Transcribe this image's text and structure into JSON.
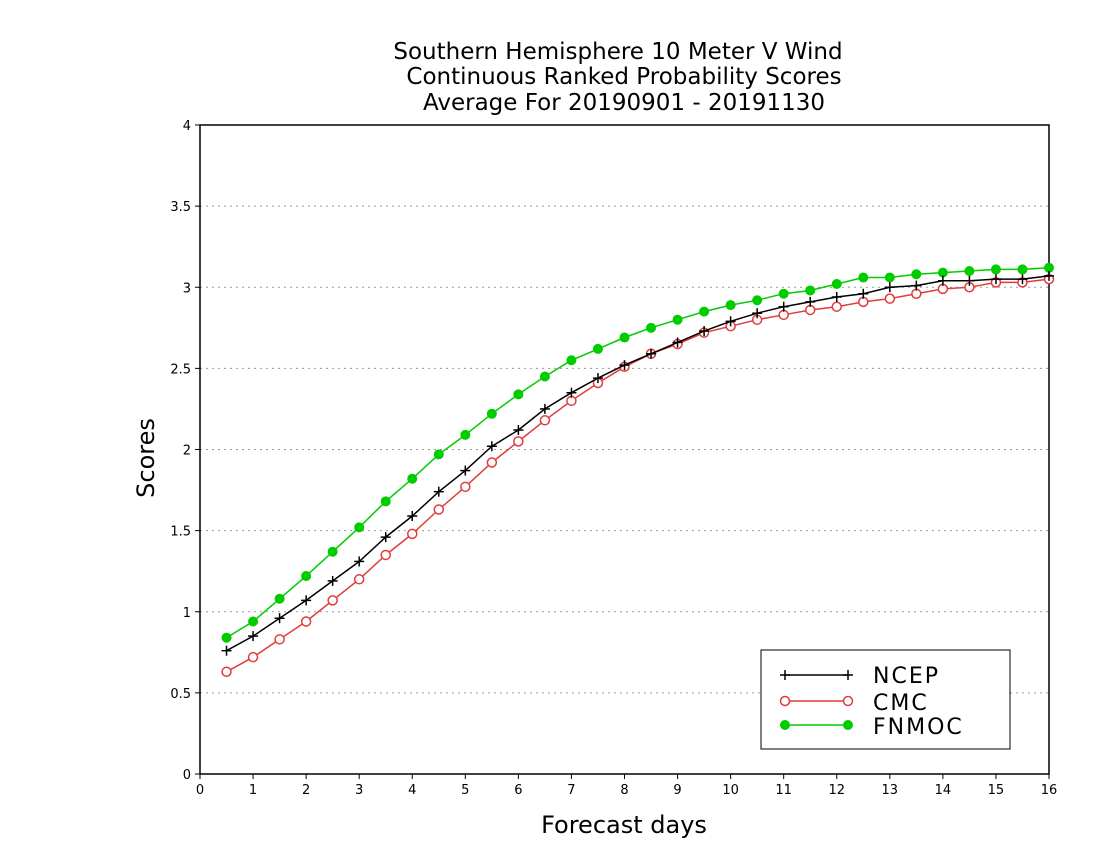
{
  "chart_data": {
    "type": "line",
    "title_lines": [
      "Southern Hemisphere 10 Meter V Wind",
      "Continuous Ranked Probability Scores",
      "Average For 20190901 - 20191130"
    ],
    "xlabel": "Forecast days",
    "ylabel": "Scores",
    "xlim": [
      0,
      16
    ],
    "ylim": [
      0,
      4
    ],
    "x_ticks": [
      0,
      1,
      2,
      3,
      4,
      5,
      6,
      7,
      8,
      9,
      10,
      11,
      12,
      13,
      14,
      15,
      16
    ],
    "y_ticks": [
      0,
      0.5,
      1,
      1.5,
      2,
      2.5,
      3,
      3.5,
      4
    ],
    "y_tick_labels": [
      "0",
      "0.5",
      "1",
      "1.5",
      "2",
      "2.5",
      "3",
      "3.5",
      "4"
    ],
    "grid": true,
    "legend_position": "bottom-right",
    "x": [
      0.5,
      1,
      1.5,
      2,
      2.5,
      3,
      3.5,
      4,
      4.5,
      5,
      5.5,
      6,
      6.5,
      7,
      7.5,
      8,
      8.5,
      9,
      9.5,
      10,
      10.5,
      11,
      11.5,
      12,
      12.5,
      13,
      13.5,
      14,
      14.5,
      15,
      15.5,
      16
    ],
    "series": [
      {
        "name": "NCEP",
        "color": "#000000",
        "marker": "plus",
        "values": [
          0.76,
          0.85,
          0.96,
          1.07,
          1.19,
          1.31,
          1.46,
          1.59,
          1.74,
          1.87,
          2.02,
          2.12,
          2.25,
          2.35,
          2.44,
          2.52,
          2.59,
          2.66,
          2.73,
          2.79,
          2.84,
          2.88,
          2.91,
          2.94,
          2.96,
          3.0,
          3.01,
          3.04,
          3.04,
          3.05,
          3.05,
          3.07
        ]
      },
      {
        "name": "CMC",
        "color": "#e03c3c",
        "marker": "open-circle",
        "values": [
          0.63,
          0.72,
          0.83,
          0.94,
          1.07,
          1.2,
          1.35,
          1.48,
          1.63,
          1.77,
          1.92,
          2.05,
          2.18,
          2.3,
          2.41,
          2.51,
          2.59,
          2.65,
          2.72,
          2.76,
          2.8,
          2.83,
          2.86,
          2.88,
          2.91,
          2.93,
          2.96,
          2.99,
          3.0,
          3.03,
          3.03,
          3.05
        ]
      },
      {
        "name": "FNMOC",
        "color": "#00cc00",
        "marker": "filled-circle",
        "values": [
          0.84,
          0.94,
          1.08,
          1.22,
          1.37,
          1.52,
          1.68,
          1.82,
          1.97,
          2.09,
          2.22,
          2.34,
          2.45,
          2.55,
          2.62,
          2.69,
          2.75,
          2.8,
          2.85,
          2.89,
          2.92,
          2.96,
          2.98,
          3.02,
          3.06,
          3.06,
          3.08,
          3.09,
          3.1,
          3.11,
          3.11,
          3.12
        ]
      }
    ]
  }
}
